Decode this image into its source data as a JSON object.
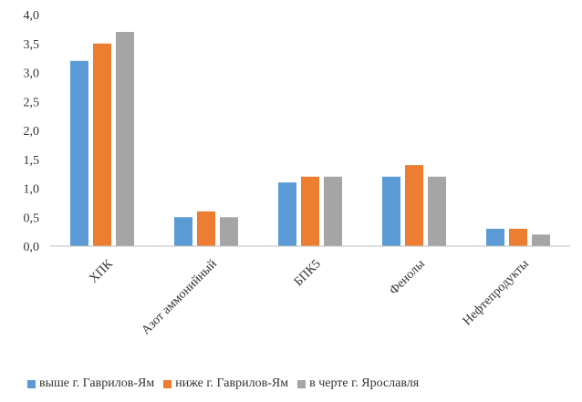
{
  "chart_data": {
    "type": "bar",
    "title": "",
    "xlabel": "",
    "ylabel": "",
    "categories": [
      "ХПК",
      "Азот аммонийный",
      "БПК5",
      "Фенолы",
      "Нефтепродукты"
    ],
    "series": [
      {
        "name": "выше г. Гаврилов-Ям",
        "color": "#5B9BD5",
        "values": [
          3.2,
          0.5,
          1.1,
          1.2,
          0.3
        ]
      },
      {
        "name": "ниже г. Гаврилов-Ям",
        "color": "#ED7D31",
        "values": [
          3.5,
          0.6,
          1.2,
          1.4,
          0.3
        ]
      },
      {
        "name": "в черте г. Ярославля",
        "color": "#A5A5A5",
        "values": [
          3.7,
          0.5,
          1.2,
          1.2,
          0.2
        ]
      }
    ],
    "ylim": [
      0,
      4.0
    ],
    "yticks": [
      "0,0",
      "0,5",
      "1,0",
      "1,5",
      "2,0",
      "2,5",
      "3,0",
      "3,5",
      "4,0"
    ],
    "grid": false,
    "legend_position": "bottom"
  }
}
